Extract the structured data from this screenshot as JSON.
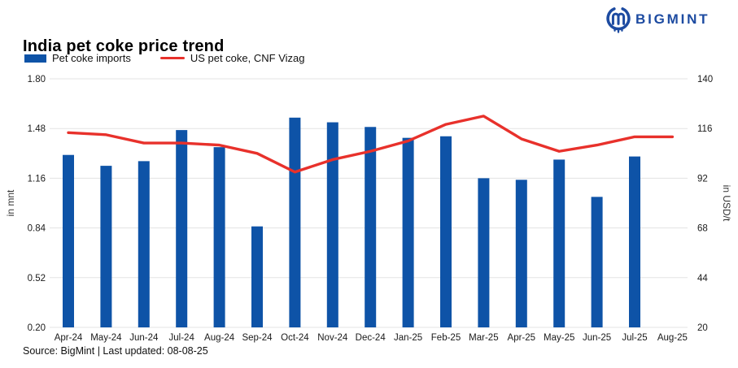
{
  "brand": {
    "logo_text": "BIGMINT",
    "logo_color": "#1d4ba1"
  },
  "title": "India pet coke price trend",
  "legend": [
    {
      "label": "Pet coke imports",
      "type": "bar",
      "color": "#0e53a7"
    },
    {
      "label": "US pet coke, CNF Vizag",
      "type": "line",
      "color": "#e8312b"
    }
  ],
  "source_note": "Source: BigMint | Last updated: 08-08-25",
  "chart_data": {
    "type": "bar+line combo",
    "title": "India pet coke price trend",
    "grid": true,
    "legend_position": "top-left",
    "categories": [
      "Apr-24",
      "May-24",
      "Jun-24",
      "Jul-24",
      "Aug-24",
      "Sep-24",
      "Oct-24",
      "Nov-24",
      "Dec-24",
      "Jan-25",
      "Feb-25",
      "Mar-25",
      "Apr-25",
      "May-25",
      "Jun-25",
      "Jul-25",
      "Aug-25"
    ],
    "series": [
      {
        "name": "Pet coke imports",
        "type": "bar",
        "axis": "left",
        "color": "#0e53a7",
        "values": [
          1.31,
          1.24,
          1.27,
          1.47,
          1.36,
          0.85,
          1.55,
          1.52,
          1.49,
          1.42,
          1.43,
          1.16,
          1.15,
          1.28,
          1.04,
          1.3,
          null
        ]
      },
      {
        "name": "US pet coke, CNF Vizag",
        "type": "line",
        "axis": "right",
        "color": "#e8312b",
        "values": [
          114,
          113,
          109,
          109,
          108,
          104,
          95,
          101,
          105,
          110,
          118,
          122,
          111,
          105,
          108,
          112,
          112
        ]
      }
    ],
    "left_axis": {
      "label": "in mnt",
      "min": 0.2,
      "max": 1.8,
      "ticks": [
        "0.20",
        "0.52",
        "0.84",
        "1.16",
        "1.48",
        "1.80"
      ]
    },
    "right_axis": {
      "label": "in USD/t",
      "min": 20,
      "max": 140,
      "ticks": [
        "20",
        "44",
        "68",
        "92",
        "116",
        "140"
      ]
    }
  }
}
